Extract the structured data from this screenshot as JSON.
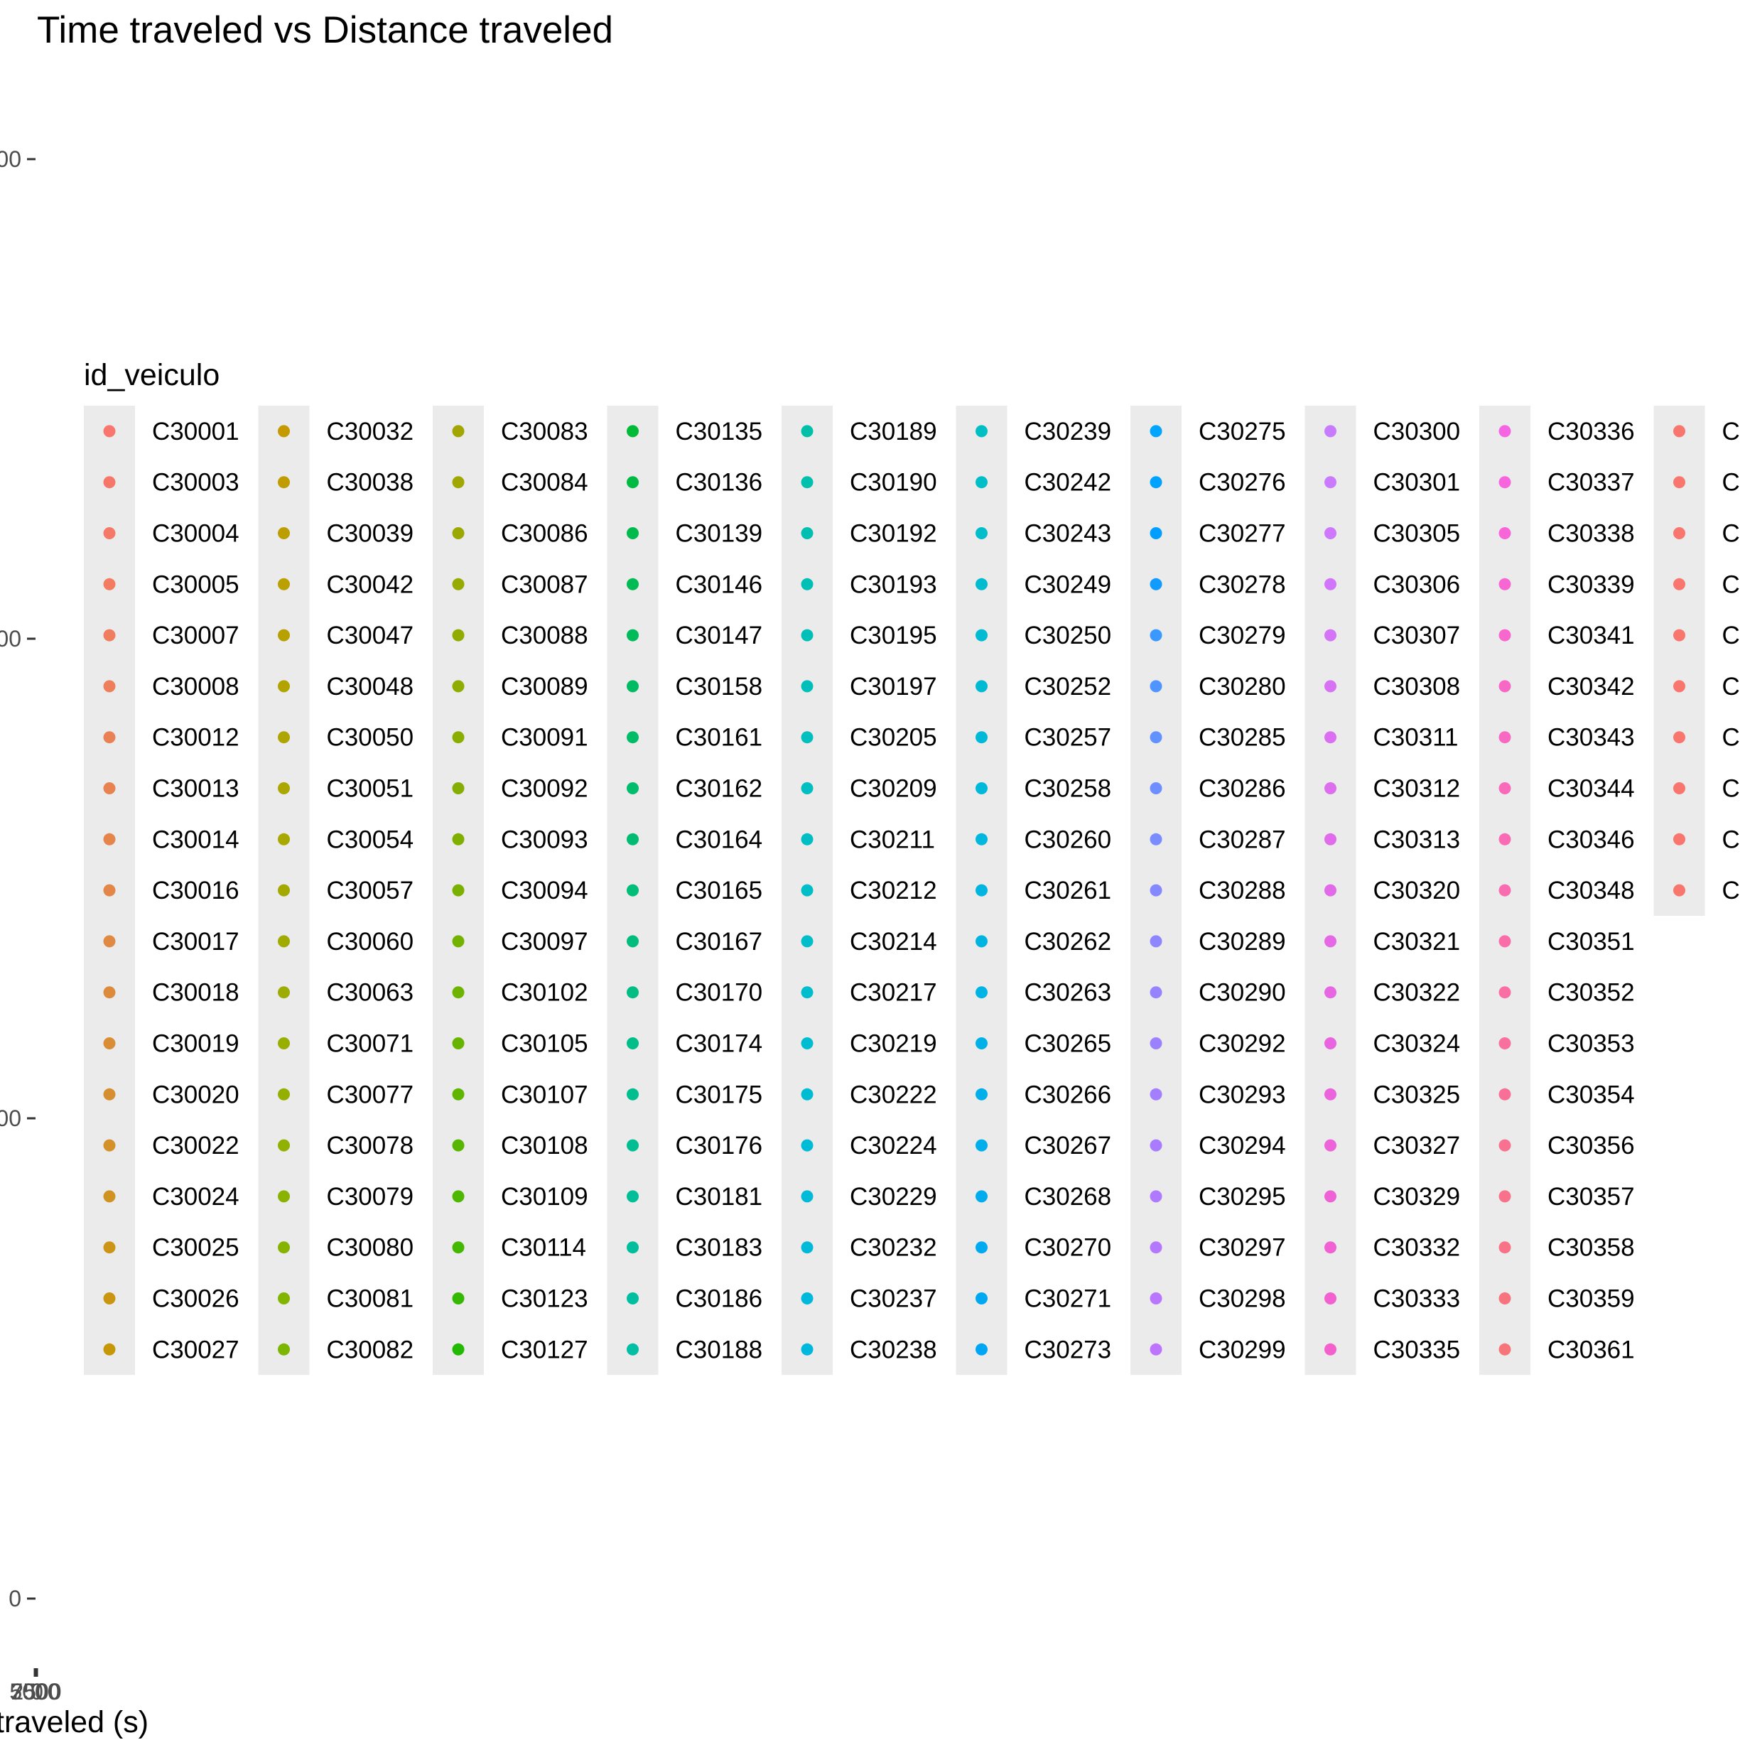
{
  "chart_data": {
    "type": "scatter",
    "title": "Time traveled vs Distance traveled",
    "xlabel": "traveled (s)",
    "ylabel": "",
    "x_tick_labels": [
      "5000",
      "7500",
      "2500",
      "0"
    ],
    "y_tick_labels": [
      "00",
      "00",
      "00",
      "0"
    ],
    "legend": {
      "title": "id_veiculo",
      "placement": "overlapping-center",
      "columns": 11,
      "entries": [
        {
          "label": "C30001",
          "color": "#F8766D"
        },
        {
          "label": "C30003",
          "color": "#F6776A"
        },
        {
          "label": "C30004",
          "color": "#F47966"
        },
        {
          "label": "C30005",
          "color": "#F27B62"
        },
        {
          "label": "C30007",
          "color": "#EF7D5E"
        },
        {
          "label": "C30008",
          "color": "#ED7F5A"
        },
        {
          "label": "C30012",
          "color": "#EA8155"
        },
        {
          "label": "C30013",
          "color": "#E88351"
        },
        {
          "label": "C30014",
          "color": "#E5854C"
        },
        {
          "label": "C30016",
          "color": "#E28747"
        },
        {
          "label": "C30017",
          "color": "#DF8942"
        },
        {
          "label": "C30018",
          "color": "#DC8B3C"
        },
        {
          "label": "C30019",
          "color": "#D98D36"
        },
        {
          "label": "C30020",
          "color": "#D68F30"
        },
        {
          "label": "C30022",
          "color": "#D39129"
        },
        {
          "label": "C30024",
          "color": "#D09321"
        },
        {
          "label": "C30025",
          "color": "#CD9518"
        },
        {
          "label": "C30026",
          "color": "#CA960F"
        },
        {
          "label": "C30027",
          "color": "#C79806"
        },
        {
          "label": "C30032",
          "color": "#C49A00"
        },
        {
          "label": "C30038",
          "color": "#C09C00"
        },
        {
          "label": "C30039",
          "color": "#BD9E00"
        },
        {
          "label": "C30042",
          "color": "#BAA000"
        },
        {
          "label": "C30047",
          "color": "#B6A100"
        },
        {
          "label": "C30048",
          "color": "#B3A300"
        },
        {
          "label": "C30050",
          "color": "#AFA500"
        },
        {
          "label": "C30051",
          "color": "#ACA600"
        },
        {
          "label": "C30054",
          "color": "#A8A800"
        },
        {
          "label": "C30057",
          "color": "#A4A900"
        },
        {
          "label": "C30060",
          "color": "#A0AB00"
        },
        {
          "label": "C30063",
          "color": "#9CAC00"
        },
        {
          "label": "C30071",
          "color": "#98AE00"
        },
        {
          "label": "C30077",
          "color": "#94AF00"
        },
        {
          "label": "C30078",
          "color": "#90B100"
        },
        {
          "label": "C30079",
          "color": "#8BB200"
        },
        {
          "label": "C30080",
          "color": "#87B300"
        },
        {
          "label": "C30081",
          "color": "#82B500"
        },
        {
          "label": "C30082",
          "color": "#7DB600"
        },
        {
          "label": "C30083",
          "color": "#A3A500"
        },
        {
          "label": "C30084",
          "color": "#9FA700"
        },
        {
          "label": "C30086",
          "color": "#9BA800"
        },
        {
          "label": "C30087",
          "color": "#97AA00"
        },
        {
          "label": "C30088",
          "color": "#92AB00"
        },
        {
          "label": "C30089",
          "color": "#8EAD00"
        },
        {
          "label": "C30091",
          "color": "#89AE00"
        },
        {
          "label": "C30092",
          "color": "#84AF00"
        },
        {
          "label": "C30093",
          "color": "#7FB000"
        },
        {
          "label": "C30094",
          "color": "#7AB100"
        },
        {
          "label": "C30097",
          "color": "#74B200"
        },
        {
          "label": "C30102",
          "color": "#6EB300"
        },
        {
          "label": "C30105",
          "color": "#67B400"
        },
        {
          "label": "C30107",
          "color": "#60B500"
        },
        {
          "label": "C30108",
          "color": "#58B600"
        },
        {
          "label": "C30109",
          "color": "#4EB700"
        },
        {
          "label": "C30114",
          "color": "#43B800"
        },
        {
          "label": "C30123",
          "color": "#35B900"
        },
        {
          "label": "C30127",
          "color": "#21BA00"
        },
        {
          "label": "C30135",
          "color": "#00BA38"
        },
        {
          "label": "C30136",
          "color": "#00BA42"
        },
        {
          "label": "C30139",
          "color": "#00BA4B"
        },
        {
          "label": "C30146",
          "color": "#00BB53"
        },
        {
          "label": "C30147",
          "color": "#00BB5A"
        },
        {
          "label": "C30158",
          "color": "#00BB61"
        },
        {
          "label": "C30161",
          "color": "#00BC67"
        },
        {
          "label": "C30162",
          "color": "#00BC6D"
        },
        {
          "label": "C30164",
          "color": "#00BC73"
        },
        {
          "label": "C30165",
          "color": "#00BD78"
        },
        {
          "label": "C30167",
          "color": "#00BD7E"
        },
        {
          "label": "C30170",
          "color": "#00BD83"
        },
        {
          "label": "C30174",
          "color": "#00BE88"
        },
        {
          "label": "C30175",
          "color": "#00BE8D"
        },
        {
          "label": "C30176",
          "color": "#00BE92"
        },
        {
          "label": "C30181",
          "color": "#00BE97"
        },
        {
          "label": "C30183",
          "color": "#00BE9B"
        },
        {
          "label": "C30186",
          "color": "#00BFA0"
        },
        {
          "label": "C30188",
          "color": "#00BFA4"
        },
        {
          "label": "C30189",
          "color": "#00BFA8"
        },
        {
          "label": "C30190",
          "color": "#00BFAC"
        },
        {
          "label": "C30192",
          "color": "#00BFB0"
        },
        {
          "label": "C30193",
          "color": "#00BFB4"
        },
        {
          "label": "C30195",
          "color": "#00BFB8"
        },
        {
          "label": "C30197",
          "color": "#00BFBB"
        },
        {
          "label": "C30205",
          "color": "#00BFBE"
        },
        {
          "label": "C30209",
          "color": "#00BEC1"
        },
        {
          "label": "C30211",
          "color": "#00BEC4"
        },
        {
          "label": "C30212",
          "color": "#00BEC7"
        },
        {
          "label": "C30214",
          "color": "#00BDCA"
        },
        {
          "label": "C30217",
          "color": "#00BDCD"
        },
        {
          "label": "C30219",
          "color": "#00BCD0"
        },
        {
          "label": "C30222",
          "color": "#00BCD2"
        },
        {
          "label": "C30224",
          "color": "#00BBD5"
        },
        {
          "label": "C30229",
          "color": "#00BAD7"
        },
        {
          "label": "C30232",
          "color": "#00B9D9"
        },
        {
          "label": "C30237",
          "color": "#00B8DB"
        },
        {
          "label": "C30238",
          "color": "#00B8DD"
        },
        {
          "label": "C30239",
          "color": "#00BFC4"
        },
        {
          "label": "C30242",
          "color": "#00BEC7"
        },
        {
          "label": "C30243",
          "color": "#00BDCB"
        },
        {
          "label": "C30249",
          "color": "#00BCCE"
        },
        {
          "label": "C30250",
          "color": "#00BBD1"
        },
        {
          "label": "C30252",
          "color": "#00BAD4"
        },
        {
          "label": "C30257",
          "color": "#00B9D7"
        },
        {
          "label": "C30258",
          "color": "#00B8DA"
        },
        {
          "label": "C30260",
          "color": "#00B7DD"
        },
        {
          "label": "C30261",
          "color": "#00B5E0"
        },
        {
          "label": "C30262",
          "color": "#00B4E2"
        },
        {
          "label": "C30263",
          "color": "#00B3E5"
        },
        {
          "label": "C30265",
          "color": "#00B1E7"
        },
        {
          "label": "C30266",
          "color": "#00AFEA"
        },
        {
          "label": "C30267",
          "color": "#00AEEC"
        },
        {
          "label": "C30268",
          "color": "#00ACEE"
        },
        {
          "label": "C30270",
          "color": "#00AAF0"
        },
        {
          "label": "C30271",
          "color": "#00A8F2"
        },
        {
          "label": "C30273",
          "color": "#00A6F4"
        },
        {
          "label": "C30275",
          "color": "#00A5FF"
        },
        {
          "label": "C30276",
          "color": "#00A2FF"
        },
        {
          "label": "C30277",
          "color": "#009FFF"
        },
        {
          "label": "C30278",
          "color": "#109BFF"
        },
        {
          "label": "C30279",
          "color": "#3A98FF"
        },
        {
          "label": "C30280",
          "color": "#5095FF"
        },
        {
          "label": "C30285",
          "color": "#6192FF"
        },
        {
          "label": "C30286",
          "color": "#6E8FFF"
        },
        {
          "label": "C30287",
          "color": "#7A8CFF"
        },
        {
          "label": "C30288",
          "color": "#8489FF"
        },
        {
          "label": "C30289",
          "color": "#8D86FF"
        },
        {
          "label": "C30290",
          "color": "#9583FF"
        },
        {
          "label": "C30292",
          "color": "#9C81FF"
        },
        {
          "label": "C30293",
          "color": "#A37EFF"
        },
        {
          "label": "C30294",
          "color": "#A97CFF"
        },
        {
          "label": "C30295",
          "color": "#AF7AFF"
        },
        {
          "label": "C30297",
          "color": "#B478FF"
        },
        {
          "label": "C30298",
          "color": "#B976FF"
        },
        {
          "label": "C30299",
          "color": "#BD75FF"
        },
        {
          "label": "C30300",
          "color": "#C77CFF"
        },
        {
          "label": "C30301",
          "color": "#CA7AFF"
        },
        {
          "label": "C30305",
          "color": "#CE78FD"
        },
        {
          "label": "C30306",
          "color": "#D176FA"
        },
        {
          "label": "C30307",
          "color": "#D474F7"
        },
        {
          "label": "C30308",
          "color": "#D772F4"
        },
        {
          "label": "C30311",
          "color": "#DA70F1"
        },
        {
          "label": "C30312",
          "color": "#DD6EEE"
        },
        {
          "label": "C30313",
          "color": "#E06CEB"
        },
        {
          "label": "C30320",
          "color": "#E26AE8"
        },
        {
          "label": "C30321",
          "color": "#E568E5"
        },
        {
          "label": "C30322",
          "color": "#E767E2"
        },
        {
          "label": "C30324",
          "color": "#E965DF"
        },
        {
          "label": "C30325",
          "color": "#EB64DC"
        },
        {
          "label": "C30327",
          "color": "#ED63D9"
        },
        {
          "label": "C30329",
          "color": "#EF62D6"
        },
        {
          "label": "C30332",
          "color": "#F161D3"
        },
        {
          "label": "C30333",
          "color": "#F361D0"
        },
        {
          "label": "C30335",
          "color": "#F461CD"
        },
        {
          "label": "C30336",
          "color": "#F564E3"
        },
        {
          "label": "C30337",
          "color": "#F664DE"
        },
        {
          "label": "C30338",
          "color": "#F765D8"
        },
        {
          "label": "C30339",
          "color": "#F766D3"
        },
        {
          "label": "C30341",
          "color": "#F867CD"
        },
        {
          "label": "C30342",
          "color": "#F868C7"
        },
        {
          "label": "C30343",
          "color": "#F869C1"
        },
        {
          "label": "C30344",
          "color": "#F96ABB"
        },
        {
          "label": "C30346",
          "color": "#F96BB5"
        },
        {
          "label": "C30348",
          "color": "#F96CAF"
        },
        {
          "label": "C30351",
          "color": "#F96DA9"
        },
        {
          "label": "C30352",
          "color": "#F96EA3"
        },
        {
          "label": "C30353",
          "color": "#F96F9D"
        },
        {
          "label": "C30354",
          "color": "#F87097"
        },
        {
          "label": "C30356",
          "color": "#F87191"
        },
        {
          "label": "C30357",
          "color": "#F8728B"
        },
        {
          "label": "C30358",
          "color": "#F77385"
        },
        {
          "label": "C30359",
          "color": "#F7747F"
        },
        {
          "label": "C30361",
          "color": "#F67579"
        },
        {
          "label": "C",
          "color": "#F8766D"
        },
        {
          "label": "C",
          "color": "#F8766D"
        },
        {
          "label": "C",
          "color": "#F8766D"
        },
        {
          "label": "C",
          "color": "#F8766D"
        },
        {
          "label": "C",
          "color": "#F8766D"
        },
        {
          "label": "C",
          "color": "#F8766D"
        },
        {
          "label": "C",
          "color": "#F8766D"
        },
        {
          "label": "C",
          "color": "#F8766D"
        },
        {
          "label": "C",
          "color": "#F8766D"
        },
        {
          "label": "C",
          "color": "#F8766D"
        }
      ]
    }
  }
}
